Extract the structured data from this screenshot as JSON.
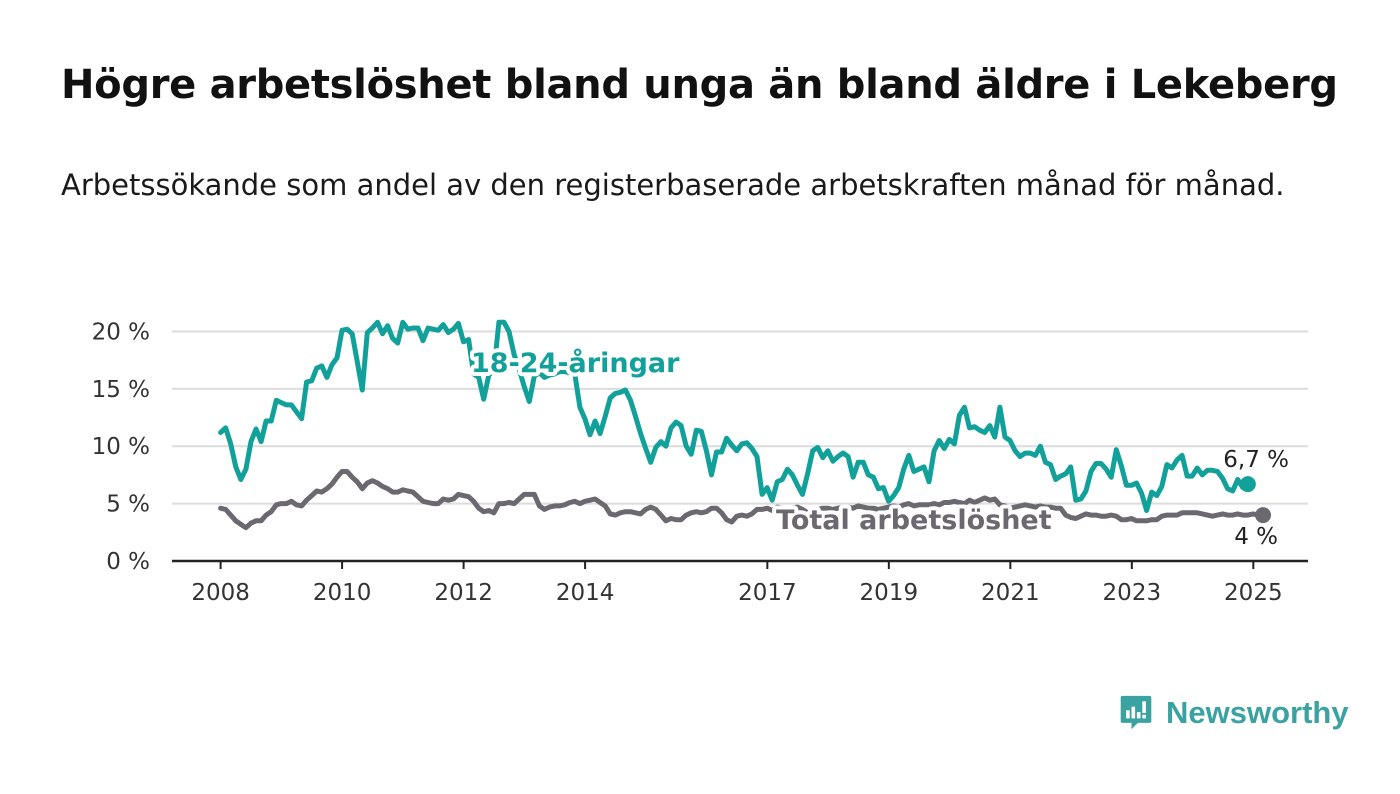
{
  "title": "Högre arbetslöshet bland unga än bland äldre i Lekeberg",
  "subtitle": "Arbetssökande som andel av den registerbaserade arbetskraften månad för månad.",
  "brand": {
    "name": "Newsworthy",
    "icon": "bar-chart-speech-bubble-icon",
    "color": "#3aa3a1"
  },
  "chart_data": {
    "type": "line",
    "title": "Högre arbetslöshet bland unga än bland äldre i Lekeberg",
    "subtitle": "Arbetssökande som andel av den registerbaserade arbetskraften månad för månad.",
    "xlabel": "",
    "ylabel": "",
    "x_ticks": [
      "2008",
      "2010",
      "2012",
      "2014",
      "2017",
      "2019",
      "2021",
      "2023",
      "2025"
    ],
    "x_tick_positions": [
      2008,
      2010,
      2012,
      2014,
      2017,
      2019,
      2021,
      2023,
      2025
    ],
    "y_ticks": [
      "0 %",
      "5 %",
      "10 %",
      "15 %",
      "20 %"
    ],
    "y_tick_values": [
      0,
      5,
      10,
      15,
      20
    ],
    "xlim": [
      2007.2,
      2025.9
    ],
    "ylim": [
      0,
      21
    ],
    "grid": "horizontal",
    "x_start": 2008.0,
    "x_step": 0.0833,
    "series": [
      {
        "name": "18-24-åringar",
        "color": "#12a19a",
        "end_label": "6,7 %",
        "values": [
          11.2,
          11.6,
          10.2,
          8.2,
          7.1,
          8.0,
          10.4,
          11.5,
          10.4,
          12.2,
          12.2,
          14.0,
          13.8,
          13.6,
          13.6,
          13.0,
          12.4,
          15.6,
          15.7,
          16.8,
          17.0,
          16.0,
          17.1,
          17.7,
          20.1,
          20.2,
          19.8,
          17.4,
          14.9,
          19.9,
          20.3,
          20.8,
          19.8,
          20.5,
          19.4,
          19.0,
          20.8,
          20.2,
          20.3,
          20.3,
          19.2,
          20.3,
          20.2,
          20.1,
          20.6,
          19.9,
          20.2,
          20.7,
          19.1,
          19.3,
          16.3,
          16.0,
          14.1,
          16.2,
          16.6,
          20.8,
          20.8,
          20.0,
          18.0,
          16.7,
          15.2,
          13.9,
          16.1,
          16.4,
          16.0,
          16.2,
          16.3,
          16.5,
          16.5,
          16.4,
          16.3,
          13.4,
          12.4,
          11.0,
          12.2,
          11.1,
          12.6,
          14.2,
          14.6,
          14.7,
          14.9,
          14.0,
          12.6,
          11.1,
          9.8,
          8.6,
          9.9,
          10.4,
          10.0,
          11.6,
          12.1,
          11.8,
          10.0,
          9.3,
          11.4,
          11.3,
          9.6,
          7.5,
          9.5,
          9.5,
          10.7,
          10.1,
          9.6,
          10.2,
          10.3,
          9.8,
          9.1,
          5.8,
          6.4,
          5.3,
          6.9,
          7.1,
          8.0,
          7.5,
          6.6,
          5.8,
          7.6,
          9.6,
          9.9,
          9.0,
          9.6,
          8.7,
          9.1,
          9.4,
          9.1,
          7.3,
          8.6,
          8.6,
          7.5,
          7.3,
          6.3,
          6.4,
          5.2,
          5.7,
          6.4,
          8.0,
          9.2,
          7.8,
          8.0,
          8.2,
          6.9,
          9.6,
          10.5,
          9.8,
          10.6,
          10.2,
          12.7,
          13.4,
          11.6,
          11.7,
          11.4,
          11.2,
          11.8,
          10.8,
          13.4,
          10.8,
          10.5,
          9.6,
          9.1,
          9.4,
          9.4,
          9.2,
          10.0,
          8.6,
          8.4,
          7.1,
          7.4,
          7.6,
          8.2,
          5.3,
          5.4,
          6.1,
          7.8,
          8.5,
          8.5,
          8.0,
          7.3,
          9.7,
          8.3,
          6.6,
          6.6,
          6.8,
          5.9,
          4.4,
          6.0,
          5.7,
          6.5,
          8.4,
          8.1,
          8.8,
          9.2,
          7.4,
          7.4,
          8.1,
          7.5,
          7.9,
          7.9,
          7.8,
          7.2,
          6.3,
          6.1,
          7.1,
          6.4,
          6.7
        ]
      },
      {
        "name": "Total arbetslöshet",
        "color": "#6b6870",
        "end_label": "4 %",
        "values": [
          4.6,
          4.5,
          4.0,
          3.5,
          3.2,
          2.9,
          3.3,
          3.5,
          3.5,
          4.0,
          4.3,
          4.9,
          5.0,
          5.0,
          5.2,
          4.9,
          4.8,
          5.3,
          5.7,
          6.1,
          6.0,
          6.3,
          6.7,
          7.3,
          7.8,
          7.8,
          7.3,
          6.9,
          6.3,
          6.8,
          7.0,
          6.8,
          6.5,
          6.3,
          6.0,
          6.0,
          6.2,
          6.1,
          6.0,
          5.6,
          5.2,
          5.1,
          5.0,
          5.0,
          5.4,
          5.3,
          5.4,
          5.8,
          5.7,
          5.6,
          5.2,
          4.6,
          4.3,
          4.4,
          4.2,
          5.0,
          5.0,
          5.1,
          5.0,
          5.4,
          5.8,
          5.8,
          5.8,
          4.8,
          4.5,
          4.7,
          4.8,
          4.8,
          4.9,
          5.1,
          5.2,
          5.0,
          5.2,
          5.3,
          5.4,
          5.1,
          4.8,
          4.1,
          4.0,
          4.2,
          4.3,
          4.3,
          4.2,
          4.1,
          4.5,
          4.7,
          4.5,
          4.0,
          3.5,
          3.7,
          3.6,
          3.6,
          4.0,
          4.2,
          4.3,
          4.2,
          4.3,
          4.6,
          4.6,
          4.2,
          3.6,
          3.4,
          3.9,
          4.0,
          3.9,
          4.1,
          4.5,
          4.5,
          4.6,
          4.4,
          4.7,
          4.6,
          4.5,
          4.6,
          4.7,
          4.5,
          4.2,
          4.3,
          4.5,
          4.6,
          4.6,
          4.5,
          4.6,
          4.7,
          4.7,
          4.6,
          4.8,
          4.7,
          4.6,
          4.6,
          4.5,
          4.6,
          4.7,
          4.8,
          4.7,
          4.9,
          5.0,
          4.8,
          4.9,
          4.9,
          4.9,
          5.0,
          4.9,
          5.1,
          5.1,
          5.2,
          5.1,
          5.0,
          5.3,
          5.1,
          5.3,
          5.5,
          5.3,
          5.4,
          4.9,
          4.8,
          4.6,
          4.7,
          4.8,
          4.9,
          4.8,
          4.7,
          4.8,
          4.7,
          4.7,
          4.6,
          4.6,
          4.0,
          3.8,
          3.7,
          3.9,
          4.1,
          4.0,
          4.0,
          3.9,
          3.9,
          4.0,
          3.9,
          3.6,
          3.6,
          3.7,
          3.5,
          3.5,
          3.5,
          3.6,
          3.6,
          3.9,
          4.0,
          4.0,
          4.0,
          4.2,
          4.2,
          4.2,
          4.2,
          4.1,
          4.0,
          3.9,
          4.0,
          4.1,
          4.0,
          4.0,
          4.1,
          4.0,
          4.0,
          4.1,
          4.0,
          4.0
        ]
      }
    ]
  }
}
